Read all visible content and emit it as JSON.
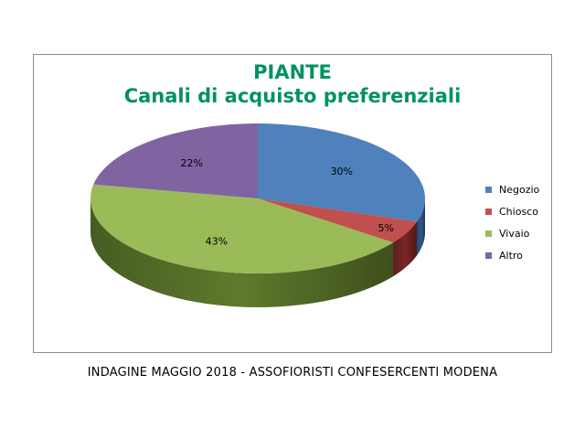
{
  "chart_data": {
    "type": "pie",
    "title": "PIANTE",
    "subtitle": "Canali di acquisto preferenziali",
    "categories": [
      "Negozio",
      "Chiosco",
      "Vivaio",
      "Altro"
    ],
    "values": [
      30,
      5,
      43,
      22
    ],
    "labels": [
      "30%",
      "5%",
      "43%",
      "22%"
    ],
    "colors": [
      "#4f81bd",
      "#c0504d",
      "#9bbb59",
      "#8064a2"
    ],
    "side_colors": [
      "#2e5a8c",
      "#7a2624",
      "#5f7a2c",
      "#4e3a6e"
    ],
    "legend_position": "right",
    "style": "3d"
  },
  "footer": {
    "source": "INDAGINE MAGGIO 2018 - ASSOFIORISTI CONFESERCENTI MODENA"
  }
}
